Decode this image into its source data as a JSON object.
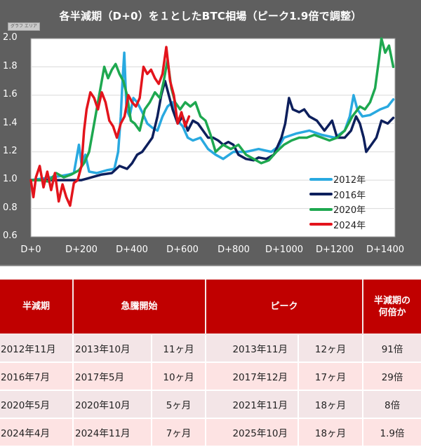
{
  "chart": {
    "title": "各半減期（D+0）を１としたBTC相場（ピーク1.9倍で調整）",
    "graph_area_tag": "グラフ エリア"
  },
  "chart_data": {
    "type": "line",
    "title": "各半減期（D+0）を１としたBTC相場（ピーク1.9倍で調整）",
    "xlabel": "",
    "ylabel": "",
    "xlim": [
      0,
      1440
    ],
    "ylim": [
      0.6,
      2.0
    ],
    "grid": true,
    "legend_position": "inside-lower-right",
    "x_ticks": [
      "D+0",
      "D+200",
      "D+400",
      "D+600",
      "D+800",
      "D+1000",
      "D+1200",
      "D+1400"
    ],
    "x_tick_values": [
      0,
      200,
      400,
      600,
      800,
      1000,
      1200,
      1400
    ],
    "y_ticks": [
      "2.0",
      "1.8",
      "1.6",
      "1.4",
      "1.2",
      "1.0",
      "0.8",
      "0.6"
    ],
    "y_tick_values": [
      2.0,
      1.8,
      1.6,
      1.4,
      1.2,
      1.0,
      0.8,
      0.6
    ],
    "series": [
      {
        "name": "2012年",
        "color": "#29a9e0",
        "x": [
          0,
          40,
          80,
          120,
          150,
          170,
          190,
          200,
          215,
          230,
          260,
          300,
          330,
          345,
          355,
          362,
          369,
          378,
          390,
          405,
          420,
          440,
          460,
          480,
          500,
          520,
          540,
          560,
          580,
          600,
          620,
          640,
          670,
          700,
          730,
          760,
          800,
          850,
          900,
          950,
          980,
          1000,
          1050,
          1100,
          1150,
          1200,
          1240,
          1260,
          1275,
          1290,
          1310,
          1340,
          1380,
          1410,
          1432
        ],
        "values": [
          1.0,
          1.01,
          1.02,
          1.03,
          1.04,
          1.05,
          1.25,
          1.12,
          1.18,
          1.06,
          1.05,
          1.07,
          1.08,
          1.2,
          1.45,
          1.7,
          1.9,
          1.5,
          1.45,
          1.58,
          1.55,
          1.48,
          1.4,
          1.37,
          1.35,
          1.45,
          1.52,
          1.55,
          1.42,
          1.38,
          1.3,
          1.28,
          1.3,
          1.22,
          1.18,
          1.15,
          1.2,
          1.2,
          1.22,
          1.2,
          1.24,
          1.3,
          1.33,
          1.35,
          1.32,
          1.3,
          1.35,
          1.45,
          1.6,
          1.5,
          1.45,
          1.46,
          1.5,
          1.52,
          1.57
        ]
      },
      {
        "name": "2016年",
        "color": "#0d1f5c",
        "x": [
          0,
          50,
          100,
          150,
          200,
          240,
          280,
          320,
          350,
          380,
          400,
          420,
          440,
          460,
          480,
          500,
          515,
          530,
          545,
          560,
          580,
          600,
          620,
          640,
          660,
          680,
          700,
          720,
          740,
          760,
          780,
          800,
          820,
          850,
          880,
          900,
          930,
          960,
          990,
          1005,
          1020,
          1035,
          1060,
          1080,
          1100,
          1130,
          1160,
          1190,
          1210,
          1240,
          1265,
          1285,
          1300,
          1315,
          1325,
          1345,
          1365,
          1385,
          1410,
          1432
        ],
        "values": [
          1.0,
          1.0,
          1.0,
          1.0,
          1.0,
          1.02,
          1.04,
          1.05,
          1.1,
          1.08,
          1.12,
          1.18,
          1.2,
          1.25,
          1.3,
          1.45,
          1.6,
          1.7,
          1.6,
          1.5,
          1.4,
          1.45,
          1.35,
          1.42,
          1.4,
          1.35,
          1.3,
          1.3,
          1.28,
          1.25,
          1.27,
          1.25,
          1.18,
          1.15,
          1.14,
          1.16,
          1.15,
          1.18,
          1.3,
          1.4,
          1.58,
          1.5,
          1.48,
          1.5,
          1.45,
          1.42,
          1.35,
          1.42,
          1.3,
          1.3,
          1.35,
          1.45,
          1.4,
          1.3,
          1.2,
          1.25,
          1.3,
          1.42,
          1.4,
          1.44
        ]
      },
      {
        "name": "2020年",
        "color": "#1ea850",
        "x": [
          0,
          40,
          70,
          100,
          130,
          160,
          190,
          210,
          230,
          245,
          260,
          275,
          290,
          305,
          320,
          335,
          350,
          365,
          380,
          395,
          410,
          430,
          450,
          470,
          490,
          510,
          525,
          540,
          555,
          570,
          590,
          610,
          630,
          650,
          670,
          690,
          710,
          730,
          760,
          790,
          820,
          850,
          880,
          910,
          940,
          970,
          1000,
          1030,
          1060,
          1090,
          1120,
          1150,
          1180,
          1210,
          1240,
          1270,
          1300,
          1320,
          1340,
          1360,
          1375,
          1385,
          1400,
          1415,
          1432
        ],
        "values": [
          1.0,
          1.0,
          0.99,
          1.05,
          1.02,
          1.04,
          1.07,
          1.12,
          1.2,
          1.35,
          1.5,
          1.65,
          1.8,
          1.72,
          1.78,
          1.82,
          1.75,
          1.7,
          1.6,
          1.42,
          1.4,
          1.35,
          1.5,
          1.55,
          1.62,
          1.58,
          1.7,
          1.85,
          1.65,
          1.55,
          1.5,
          1.55,
          1.52,
          1.55,
          1.45,
          1.42,
          1.32,
          1.2,
          1.25,
          1.22,
          1.25,
          1.18,
          1.15,
          1.12,
          1.14,
          1.2,
          1.25,
          1.28,
          1.3,
          1.3,
          1.32,
          1.3,
          1.28,
          1.3,
          1.35,
          1.45,
          1.52,
          1.5,
          1.55,
          1.65,
          1.85,
          2.0,
          1.9,
          1.95,
          1.8
        ]
      },
      {
        "name": "2024年",
        "color": "#e3141c",
        "x": [
          0,
          10,
          20,
          35,
          50,
          65,
          80,
          95,
          110,
          125,
          140,
          155,
          170,
          185,
          200,
          210,
          220,
          235,
          250,
          265,
          280,
          295,
          310,
          325,
          340,
          355,
          370,
          385,
          400,
          415,
          430,
          445,
          460,
          475,
          490,
          505,
          520,
          535,
          550,
          565,
          580,
          595,
          610,
          625
        ],
        "values": [
          1.0,
          0.88,
          1.02,
          1.1,
          0.95,
          1.06,
          0.93,
          1.05,
          0.85,
          0.97,
          0.88,
          0.82,
          0.98,
          1.0,
          1.1,
          1.35,
          1.5,
          1.62,
          1.58,
          1.5,
          1.62,
          1.55,
          1.42,
          1.38,
          1.3,
          1.4,
          1.45,
          1.6,
          1.55,
          1.52,
          1.58,
          1.8,
          1.75,
          1.78,
          1.72,
          1.68,
          1.75,
          1.94,
          1.7,
          1.6,
          1.4,
          1.48,
          1.38,
          1.45
        ]
      }
    ]
  },
  "legend": {
    "items": [
      {
        "label": "2012年",
        "color": "#29a9e0"
      },
      {
        "label": "2016年",
        "color": "#0d1f5c"
      },
      {
        "label": "2020年",
        "color": "#1ea850"
      },
      {
        "label": "2024年",
        "color": "#e3141c"
      }
    ]
  },
  "table": {
    "headers": {
      "halving": "半減期",
      "surge_start": "急騰開始",
      "peak": "ピーク",
      "multiple_line1": "半減期の",
      "multiple_line2": "何倍か"
    },
    "rows": [
      {
        "halving": "2012年11月",
        "surge_start": "2013年10月",
        "surge_months": "11ヶ月",
        "peak": "2013年11月",
        "peak_months": "12ヶ月",
        "multiple": "91倍"
      },
      {
        "halving": "2016年7月",
        "surge_start": "2017年5月",
        "surge_months": "10ヶ月",
        "peak": "2017年12月",
        "peak_months": "17ヶ月",
        "multiple": "29倍"
      },
      {
        "halving": "2020年5月",
        "surge_start": "2020年10月",
        "surge_months": "5ヶ月",
        "peak": "2021年11月",
        "peak_months": "18ヶ月",
        "multiple": "8倍"
      },
      {
        "halving": "2024年4月",
        "surge_start": "2024年11月",
        "surge_months": "7ヶ月",
        "peak": "2025年10月",
        "peak_months": "18ヶ月",
        "multiple": "1.9倍"
      }
    ]
  },
  "colors": {
    "chart_background": "#5f5f5f",
    "plot_background": "#ffffff",
    "gridline": "#d9d9d9",
    "table_header": "#c00000",
    "row_odd": "#f3e5e7",
    "row_even": "#fde3e3"
  }
}
